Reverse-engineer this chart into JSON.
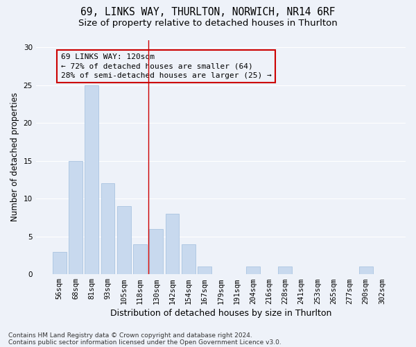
{
  "title1": "69, LINKS WAY, THURLTON, NORWICH, NR14 6RF",
  "title2": "Size of property relative to detached houses in Thurlton",
  "xlabel": "Distribution of detached houses by size in Thurlton",
  "ylabel": "Number of detached properties",
  "categories": [
    "56sqm",
    "68sqm",
    "81sqm",
    "93sqm",
    "105sqm",
    "118sqm",
    "130sqm",
    "142sqm",
    "154sqm",
    "167sqm",
    "179sqm",
    "191sqm",
    "204sqm",
    "216sqm",
    "228sqm",
    "241sqm",
    "253sqm",
    "265sqm",
    "277sqm",
    "290sqm",
    "302sqm"
  ],
  "values": [
    3,
    15,
    25,
    12,
    9,
    4,
    6,
    8,
    4,
    1,
    0,
    0,
    1,
    0,
    1,
    0,
    0,
    0,
    0,
    1,
    0
  ],
  "bar_color": "#c8d9ee",
  "bar_edge_color": "#aac4e0",
  "reference_line_x": 5.5,
  "reference_line_color": "#cc0000",
  "annotation_line1": "69 LINKS WAY: 120sqm",
  "annotation_line2": "← 72% of detached houses are smaller (64)",
  "annotation_line3": "28% of semi-detached houses are larger (25) →",
  "annotation_box_color": "#cc0000",
  "ylim": [
    0,
    31
  ],
  "yticks": [
    0,
    5,
    10,
    15,
    20,
    25,
    30
  ],
  "footnote1": "Contains HM Land Registry data © Crown copyright and database right 2024.",
  "footnote2": "Contains public sector information licensed under the Open Government Licence v3.0.",
  "background_color": "#eef2f9",
  "grid_color": "#ffffff",
  "title1_fontsize": 10.5,
  "title2_fontsize": 9.5,
  "xlabel_fontsize": 9,
  "ylabel_fontsize": 8.5,
  "tick_fontsize": 7.5,
  "annotation_fontsize": 8,
  "footnote_fontsize": 6.5
}
